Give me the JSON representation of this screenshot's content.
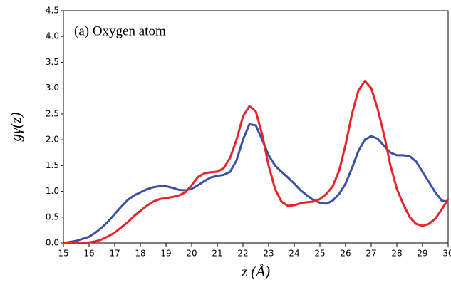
{
  "chart_data": {
    "type": "line",
    "annotation": "(a) Oxygen atom",
    "xlabel": "z (Å)",
    "ylabel": "gγ(z)",
    "x": [
      15,
      15.25,
      15.5,
      15.75,
      16,
      16.25,
      16.5,
      16.75,
      17,
      17.25,
      17.5,
      17.75,
      18,
      18.25,
      18.5,
      18.75,
      19,
      19.25,
      19.5,
      19.75,
      20,
      20.25,
      20.5,
      20.75,
      21,
      21.25,
      21.5,
      21.75,
      22,
      22.25,
      22.5,
      22.75,
      23,
      23.25,
      23.5,
      23.75,
      24,
      24.25,
      24.5,
      24.75,
      25,
      25.25,
      25.5,
      25.75,
      26,
      26.25,
      26.5,
      26.75,
      27,
      27.25,
      27.5,
      27.75,
      28,
      28.25,
      28.5,
      28.75,
      29,
      29.25,
      29.5,
      29.75,
      30
    ],
    "series": [
      {
        "color": "#3a4fa8",
        "values": [
          0,
          0.02,
          0.04,
          0.08,
          0.12,
          0.2,
          0.3,
          0.42,
          0.56,
          0.7,
          0.83,
          0.92,
          0.98,
          1.04,
          1.08,
          1.1,
          1.1,
          1.07,
          1.03,
          1.02,
          1.05,
          1.12,
          1.2,
          1.27,
          1.3,
          1.32,
          1.38,
          1.6,
          2.0,
          2.3,
          2.28,
          2.0,
          1.7,
          1.5,
          1.38,
          1.27,
          1.15,
          1.02,
          0.92,
          0.83,
          0.78,
          0.76,
          0.82,
          0.95,
          1.15,
          1.45,
          1.78,
          2.0,
          2.07,
          2.02,
          1.88,
          1.75,
          1.7,
          1.7,
          1.68,
          1.58,
          1.38,
          1.18,
          0.98,
          0.82,
          0.8
        ]
      },
      {
        "color": "#e8232a",
        "values": [
          0,
          0,
          0,
          0,
          0.01,
          0.03,
          0.07,
          0.13,
          0.2,
          0.3,
          0.4,
          0.52,
          0.62,
          0.72,
          0.8,
          0.85,
          0.87,
          0.89,
          0.92,
          0.98,
          1.12,
          1.28,
          1.35,
          1.37,
          1.38,
          1.45,
          1.65,
          2.0,
          2.45,
          2.65,
          2.55,
          2.1,
          1.5,
          1.05,
          0.8,
          0.72,
          0.73,
          0.77,
          0.79,
          0.8,
          0.85,
          0.95,
          1.1,
          1.4,
          1.9,
          2.5,
          2.95,
          3.14,
          3.0,
          2.6,
          2.1,
          1.5,
          1.05,
          0.75,
          0.5,
          0.37,
          0.33,
          0.37,
          0.47,
          0.65,
          0.85
        ]
      }
    ],
    "xlim": [
      15,
      30
    ],
    "xticks": [
      15,
      16,
      17,
      18,
      19,
      20,
      21,
      22,
      23,
      24,
      25,
      26,
      27,
      28,
      29,
      30
    ],
    "ylim": [
      0,
      4.5
    ],
    "yticks": [
      {
        "value": 0,
        "label": "0.0"
      },
      {
        "value": 0.5,
        "label": "0.5"
      },
      {
        "value": 1,
        "label": "1.0"
      },
      {
        "value": 1.5,
        "label": "1.5"
      },
      {
        "value": 2,
        "label": "2.0"
      },
      {
        "value": 2.5,
        "label": "2.5"
      },
      {
        "value": 3,
        "label": "3.0"
      },
      {
        "value": 3.5,
        "label": "3.5"
      },
      {
        "value": 4,
        "label": "4.0"
      },
      {
        "value": 4.5,
        "label": "4.5"
      }
    ],
    "grid": false
  }
}
